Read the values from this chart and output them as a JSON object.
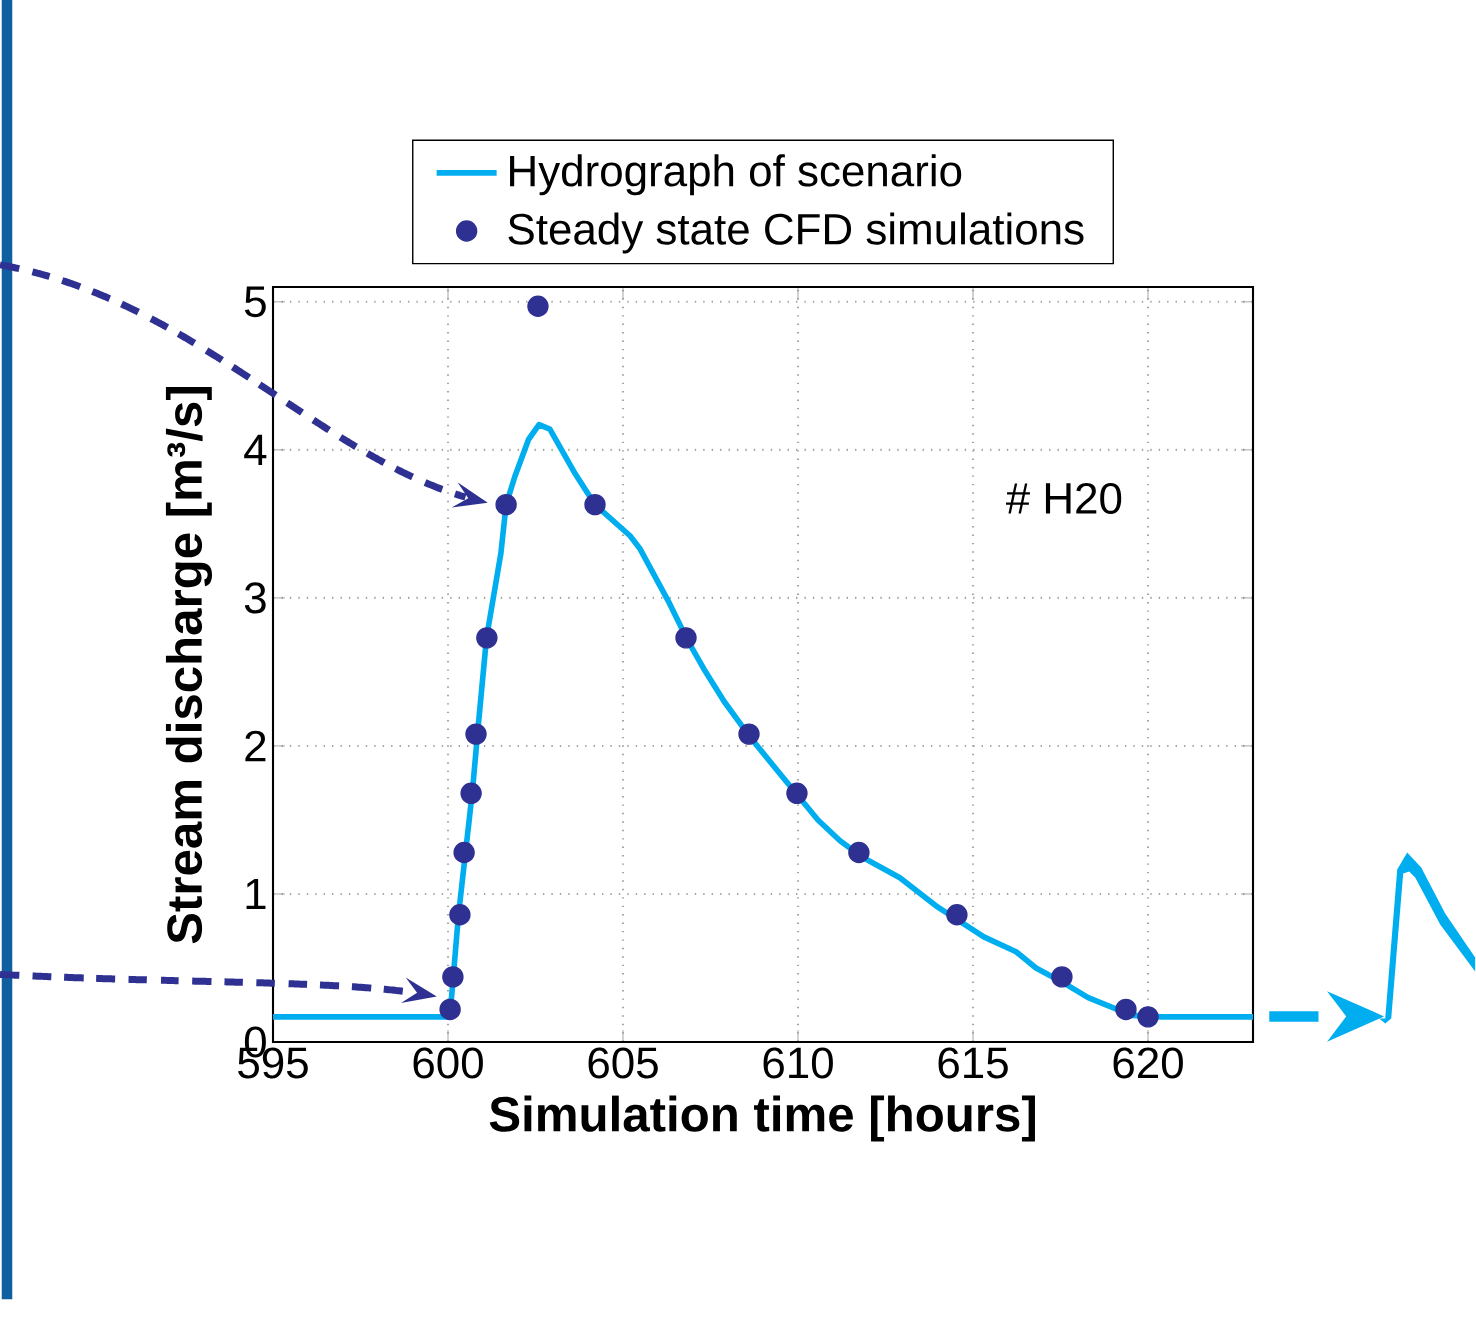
{
  "chart_data": {
    "type": "line",
    "xlabel": "Simulation time [hours]",
    "ylabel": "Stream discharge [m³/s]",
    "xlim": [
      595,
      623
    ],
    "ylim": [
      0,
      5.1
    ],
    "xticks": [
      595,
      600,
      605,
      610,
      615,
      620
    ],
    "yticks": [
      0,
      1,
      2,
      3,
      4,
      5
    ],
    "grid": true,
    "legend": "top",
    "annotations": [
      "# H20"
    ],
    "series": [
      {
        "name": "Hydrograph of scenario",
        "type": "line",
        "color": "#00aeef",
        "marker": "none",
        "line_style": "solid",
        "x": [
          595,
          600.0,
          600.1,
          600.3,
          600.5,
          600.7,
          600.85,
          601.1,
          601.51,
          601.66,
          601.91,
          602.3,
          602.6,
          602.91,
          603.63,
          604.2,
          605.2,
          605.49,
          606.29,
          606.83,
          607.31,
          607.89,
          608.63,
          609.49,
          610.57,
          611.2,
          611.83,
          612.91,
          613.94,
          615.31,
          616.23,
          616.8,
          617.66,
          618.29,
          619.54,
          620.4,
          623
        ],
        "values": [
          0.17,
          0.17,
          0.3,
          0.86,
          1.28,
          1.7,
          2.1,
          2.73,
          3.3,
          3.63,
          3.82,
          4.07,
          4.17,
          4.14,
          3.84,
          3.63,
          3.42,
          3.33,
          2.98,
          2.72,
          2.52,
          2.3,
          2.06,
          1.81,
          1.5,
          1.36,
          1.25,
          1.11,
          0.92,
          0.71,
          0.61,
          0.5,
          0.39,
          0.3,
          0.18,
          0.17,
          0.17
        ]
      },
      {
        "name": "Steady state CFD simulations",
        "type": "scatter",
        "color": "#2e3192",
        "marker": "circle",
        "x": [
          600.06,
          600.14,
          600.34,
          600.46,
          600.66,
          600.8,
          601.11,
          601.66,
          602.57,
          604.2,
          606.8,
          608.6,
          609.97,
          611.74,
          614.54,
          617.54,
          619.37,
          620.0
        ],
        "values": [
          0.22,
          0.44,
          0.86,
          1.28,
          1.68,
          2.08,
          2.73,
          3.63,
          4.97,
          3.63,
          2.73,
          2.08,
          1.68,
          1.28,
          0.86,
          0.44,
          0.22,
          0.17
        ]
      }
    ]
  }
}
